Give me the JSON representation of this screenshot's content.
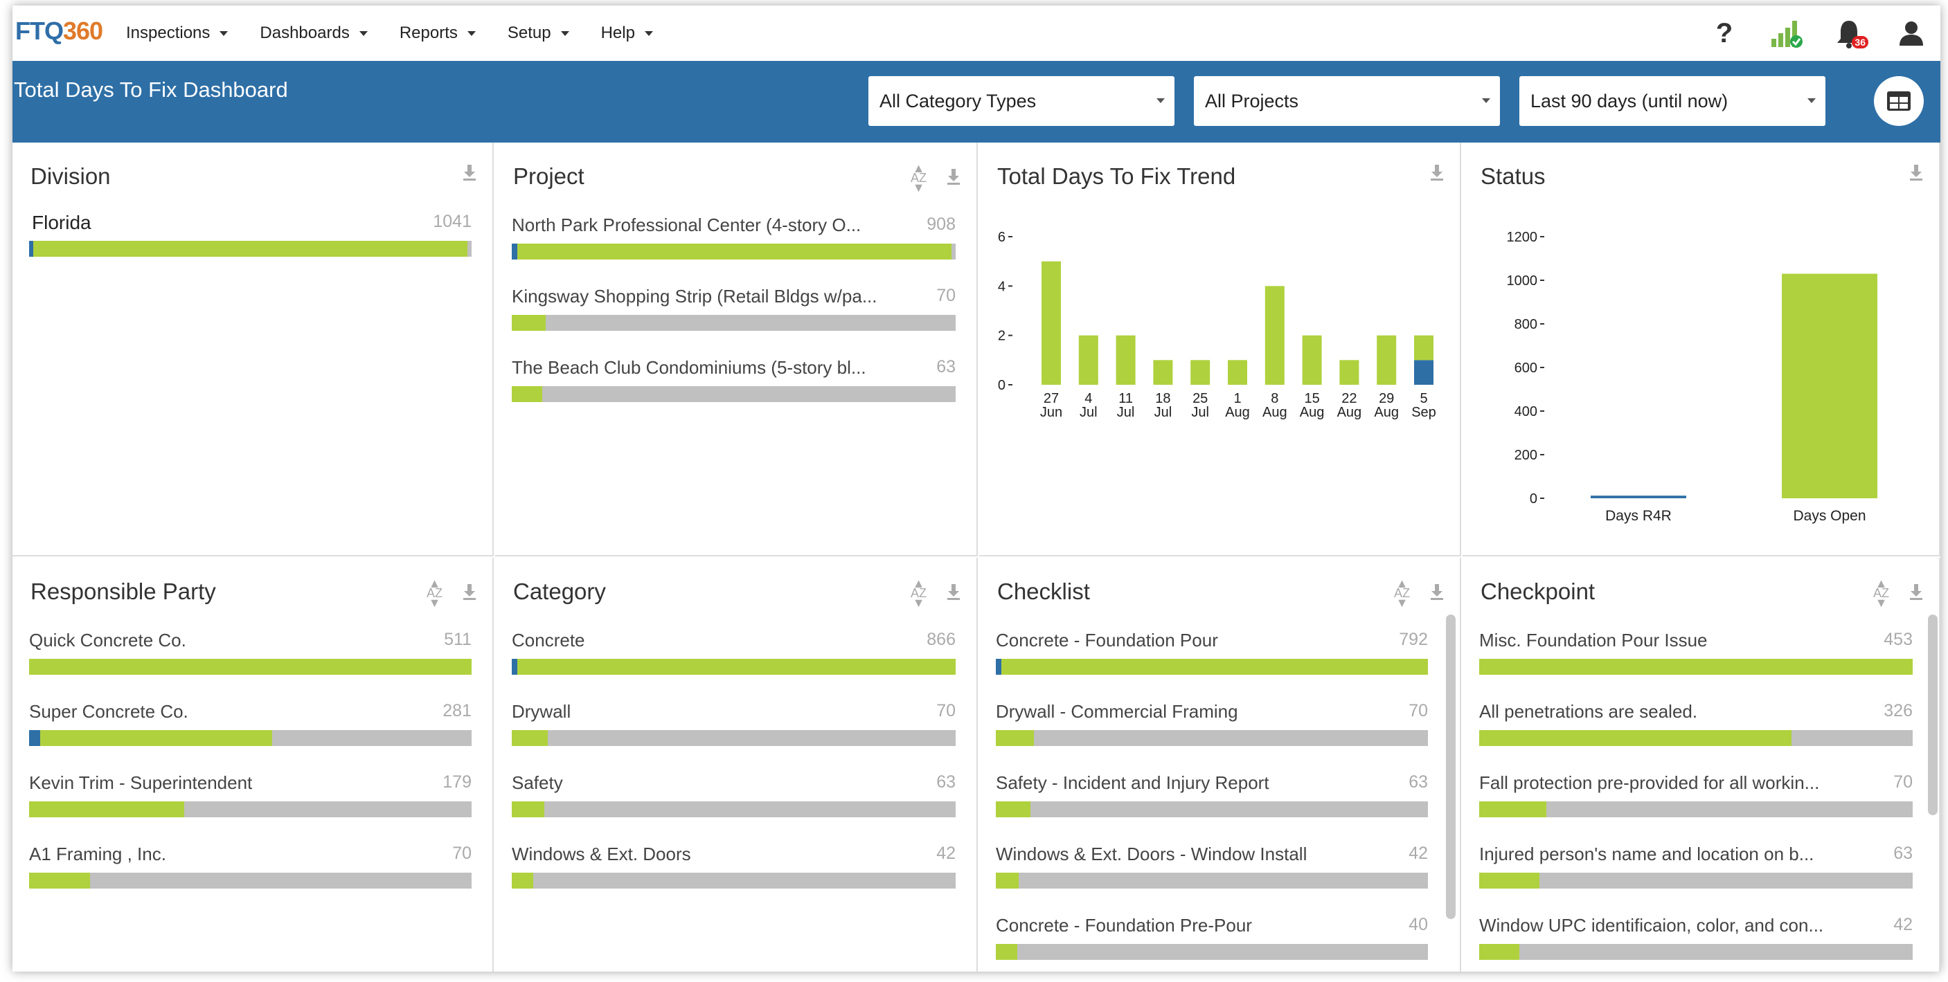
{
  "nav": {
    "logo_a": "FTQ",
    "logo_b": "360",
    "menu": [
      "Inspections",
      "Dashboards",
      "Reports",
      "Setup",
      "Help"
    ],
    "help_label": "?",
    "notif_count": "36"
  },
  "header": {
    "title": "Total Days To Fix Dashboard",
    "filters": {
      "category": "All Category Types",
      "project": "All Projects",
      "date": "Last 90 days (until now)"
    }
  },
  "colors": {
    "brand_blue": "#2e6fa6",
    "bar_green": "#afd13d",
    "bar_gray": "#c0c0c0",
    "logo_orange": "#e07a2a"
  },
  "division": {
    "title": "Division",
    "rows": [
      {
        "label": "Florida",
        "value": "1041",
        "green": 0.99,
        "blue": 0.01
      }
    ]
  },
  "project": {
    "title": "Project",
    "az": "AZ",
    "rows": [
      {
        "label": "North Park Professional Center (4-story O...",
        "value": "908",
        "green": 0.99,
        "blue": 0.012
      },
      {
        "label": "Kingsway Shopping Strip (Retail Bldgs w/pa...",
        "value": "70",
        "green": 0.076,
        "blue": 0
      },
      {
        "label": "The Beach Club Condominiums (5-story bl...",
        "value": "63",
        "green": 0.069,
        "blue": 0
      }
    ]
  },
  "trend": {
    "title": "Total Days To Fix Trend",
    "chart_data": {
      "type": "bar",
      "categories": [
        "27 Jun",
        "4 Jul",
        "11 Jul",
        "18 Jul",
        "25 Jul",
        "1 Aug",
        "8 Aug",
        "15 Aug",
        "22 Aug",
        "29 Aug",
        "5 Sep"
      ],
      "cat_top": [
        "27",
        "4",
        "11",
        "18",
        "25",
        "1",
        "8",
        "15",
        "22",
        "29",
        "5"
      ],
      "cat_bottom": [
        "Jun",
        "Jul",
        "Jul",
        "Jul",
        "Jul",
        "Aug",
        "Aug",
        "Aug",
        "Aug",
        "Aug",
        "Sep"
      ],
      "series": [
        {
          "color": "#2e6fa6",
          "values": [
            0,
            0,
            0,
            0,
            0,
            0,
            0,
            0,
            0,
            0,
            1
          ]
        },
        {
          "color": "#afd13d",
          "values": [
            5,
            2,
            2,
            1,
            1,
            1,
            4,
            2,
            1,
            2,
            1
          ]
        }
      ],
      "ylim": [
        0,
        6
      ],
      "yticks": [
        "0",
        "2",
        "4",
        "6"
      ],
      "stacked": true
    }
  },
  "status": {
    "title": "Status",
    "chart_data": {
      "type": "bar",
      "categories": [
        "Days R4R",
        "Days Open"
      ],
      "values": [
        12,
        1030
      ],
      "colors": [
        "#2e6fa6",
        "#afd13d"
      ],
      "ylim": [
        0,
        1200
      ],
      "yticks": [
        "0",
        "200",
        "400",
        "600",
        "800",
        "1000",
        "1200"
      ]
    }
  },
  "responsible": {
    "title": "Responsible Party",
    "az": "AZ",
    "rows": [
      {
        "label": "Quick Concrete Co.",
        "value": "511",
        "green": 1.0,
        "blue": 0
      },
      {
        "label": "Super Concrete Co.",
        "value": "281",
        "green": 0.55,
        "blue": 0.025
      },
      {
        "label": "Kevin Trim - Superintendent",
        "value": "179",
        "green": 0.35,
        "blue": 0
      },
      {
        "label": "A1 Framing , Inc.",
        "value": "70",
        "green": 0.137,
        "blue": 0
      }
    ]
  },
  "category": {
    "title": "Category",
    "az": "AZ",
    "rows": [
      {
        "label": "Concrete",
        "value": "866",
        "green": 1.0,
        "blue": 0.012
      },
      {
        "label": "Drywall",
        "value": "70",
        "green": 0.081,
        "blue": 0
      },
      {
        "label": "Safety",
        "value": "63",
        "green": 0.073,
        "blue": 0
      },
      {
        "label": "Windows & Ext. Doors",
        "value": "42",
        "green": 0.049,
        "blue": 0
      }
    ]
  },
  "checklist": {
    "title": "Checklist",
    "az": "AZ",
    "rows": [
      {
        "label": "Concrete - Foundation Pour",
        "value": "792",
        "green": 1.0,
        "blue": 0.013
      },
      {
        "label": "Drywall - Commercial Framing",
        "value": "70",
        "green": 0.088,
        "blue": 0
      },
      {
        "label": "Safety - Incident and Injury Report",
        "value": "63",
        "green": 0.08,
        "blue": 0
      },
      {
        "label": "Windows & Ext. Doors - Window Install",
        "value": "42",
        "green": 0.053,
        "blue": 0
      },
      {
        "label": "Concrete - Foundation Pre-Pour",
        "value": "40",
        "green": 0.05,
        "blue": 0
      }
    ]
  },
  "checkpoint": {
    "title": "Checkpoint",
    "az": "AZ",
    "rows": [
      {
        "label": "Misc. Foundation Pour Issue",
        "value": "453",
        "green": 1.0,
        "blue": 0
      },
      {
        "label": "All penetrations are sealed.",
        "value": "326",
        "green": 0.72,
        "blue": 0
      },
      {
        "label": "Fall protection pre-provided for all workin...",
        "value": "70",
        "green": 0.155,
        "blue": 0
      },
      {
        "label": "Injured person's name and location on b...",
        "value": "63",
        "green": 0.139,
        "blue": 0
      },
      {
        "label": "Window UPC identificaion, color, and con...",
        "value": "42",
        "green": 0.093,
        "blue": 0
      }
    ]
  }
}
